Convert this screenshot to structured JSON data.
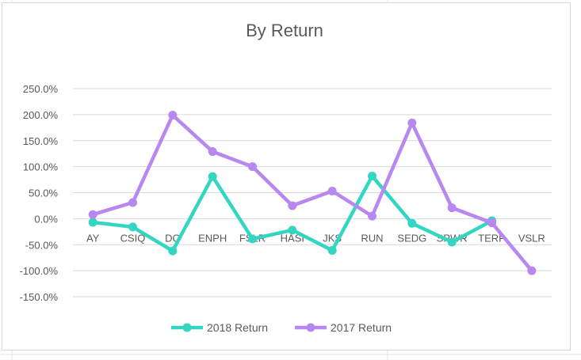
{
  "chart_data": {
    "type": "line",
    "title": "By Return",
    "xlabel": "",
    "ylabel": "",
    "categories": [
      "AY",
      "CSIQ",
      "DQ",
      "ENPH",
      "FSLR",
      "HASI",
      "JKS",
      "RUN",
      "SEDG",
      "SPWR",
      "TERP",
      "VSLR"
    ],
    "ylim": [
      -150,
      250
    ],
    "yticks": [
      -150,
      -100,
      -50,
      0,
      50,
      100,
      150,
      200,
      250
    ],
    "ytick_labels": [
      "-150.0%",
      "-100.0%",
      "-50.0%",
      "0.0%",
      "50.0%",
      "100.0%",
      "150.0%",
      "200.0%",
      "250.0%"
    ],
    "grid": true,
    "legend_position": "bottom",
    "series": [
      {
        "name": "2018 Return",
        "color": "#33d6c0",
        "values": [
          -7,
          -16,
          -62,
          81,
          -39,
          -22,
          -61,
          82,
          -9,
          -45,
          -4,
          null
        ]
      },
      {
        "name": "2017 Return",
        "color": "#b987f0",
        "values": [
          8,
          31,
          199,
          129,
          100,
          25,
          53,
          5,
          184,
          21,
          -8,
          -100
        ]
      }
    ]
  }
}
